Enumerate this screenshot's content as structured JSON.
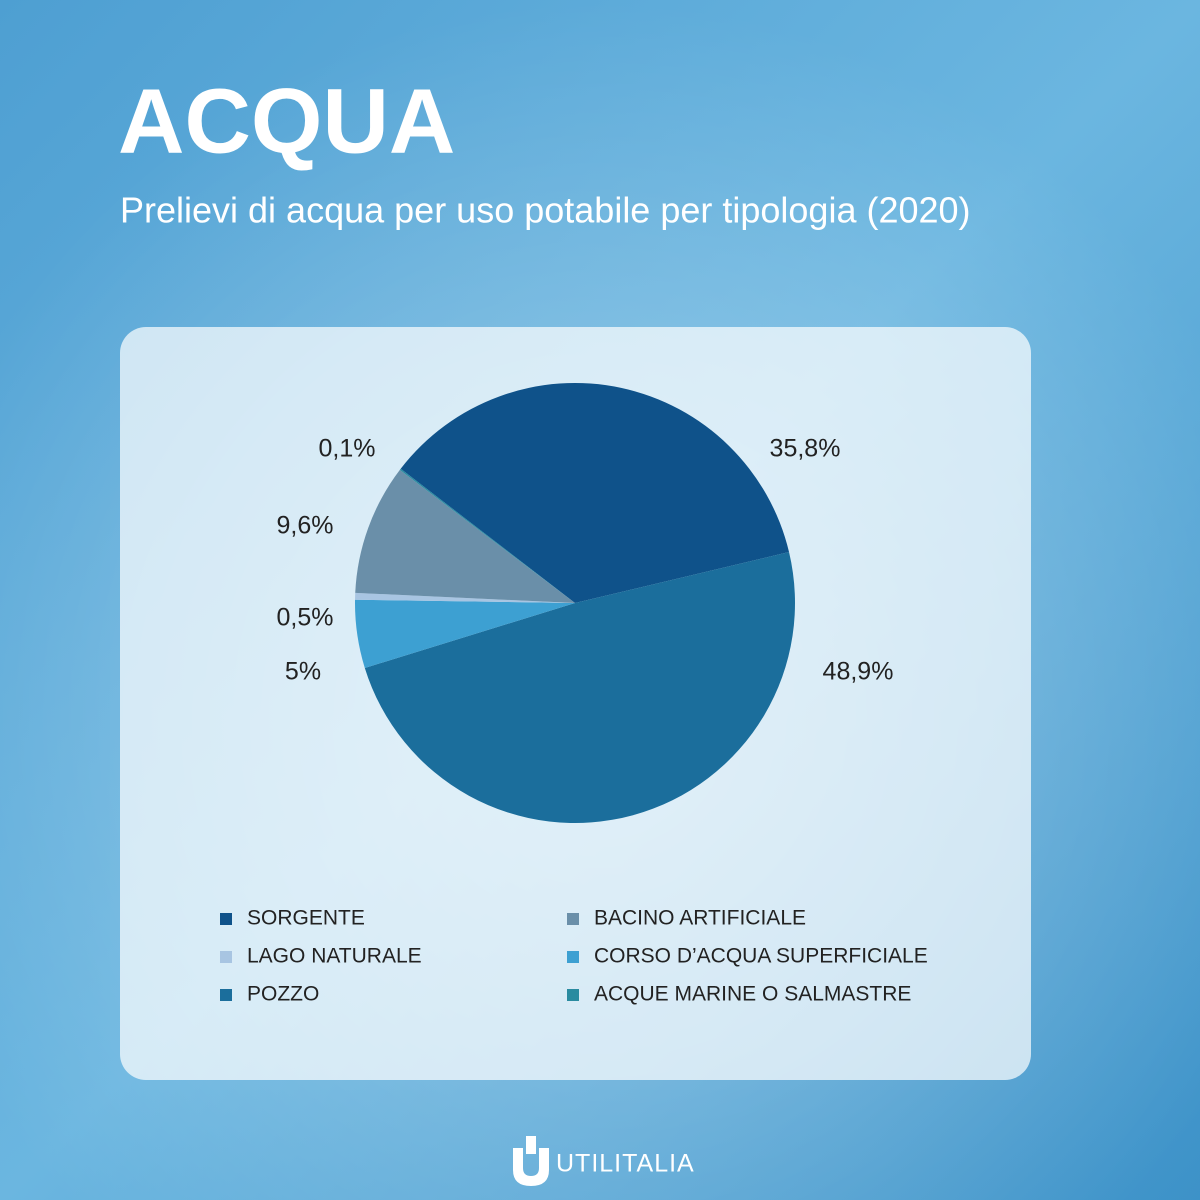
{
  "chart_data": {
    "type": "pie",
    "title": "ACQUA",
    "subtitle": "Prelievi di acqua per uso potabile per tipologia (2020)",
    "categories": [
      "SORGENTE",
      "POZZO",
      "CORSO D’ACQUA SUPERFICIALE",
      "LAGO NATURALE",
      "BACINO ARTIFICIALE",
      "ACQUE MARINE O SALMASTRE"
    ],
    "values": [
      35.8,
      48.9,
      5,
      0.5,
      9.6,
      0.1
    ],
    "value_labels": [
      "35,8%",
      "48,9%",
      "5%",
      "0,5%",
      "9,6%",
      "0,1%"
    ],
    "colors": [
      "#0f528a",
      "#1b6e9c",
      "#3da0d2",
      "#a8c5e2",
      "#6a8fa9",
      "#2a8ba0"
    ],
    "legend": "bottom"
  },
  "footer": {
    "brand": "UTILITALIA"
  }
}
